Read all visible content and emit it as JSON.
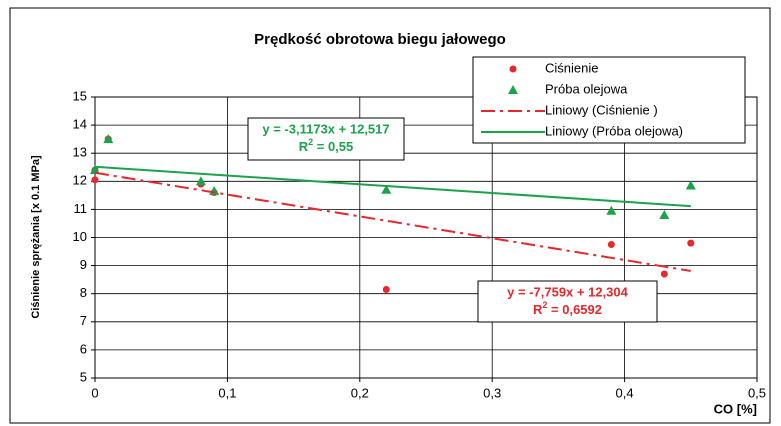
{
  "chart_data": {
    "type": "scatter",
    "title": "Prędkość obrotowa biegu jałowego",
    "xlabel": "CO [%]",
    "ylabel": "Ciśnienie sprężania [x 0.1 MPa]",
    "xlim": [
      0,
      0.5
    ],
    "xticks": [
      0,
      {
        "value": 0.1,
        "label": "0,1"
      },
      {
        "value": 0.2,
        "label": "0,2"
      },
      {
        "value": 0.3,
        "label": "0,3"
      },
      {
        "value": 0.4,
        "label": "0,4"
      },
      {
        "value": 0.5,
        "label": "0,5"
      }
    ],
    "ylim": [
      5,
      15
    ],
    "yticks": [
      5,
      6,
      7,
      8,
      9,
      10,
      11,
      12,
      13,
      14,
      15
    ],
    "grid": true,
    "legend": "top-right",
    "series": [
      {
        "name": "Ciśnienie",
        "color": "#e8262b",
        "marker": "circle",
        "x": [
          0,
          0,
          0.01,
          0.08,
          0.09,
          0.22,
          0.39,
          0.43,
          0.45
        ],
        "values": [
          12.05,
          12.4,
          13.5,
          11.9,
          11.6,
          8.15,
          9.75,
          8.7,
          9.8
        ]
      },
      {
        "name": "Próba olejowa",
        "color": "#1aa34a",
        "marker": "triangle",
        "x": [
          0,
          0.01,
          0.08,
          0.09,
          0.22,
          0.39,
          0.43,
          0.45
        ],
        "values": [
          12.4,
          13.5,
          12.0,
          11.65,
          11.7,
          10.95,
          10.8,
          11.85
        ]
      },
      {
        "name": "Liniowy (Ciśnienie )",
        "color": "#e8262b",
        "marker": "dashdot",
        "x": [
          0,
          0.45
        ],
        "values": [
          12.304,
          8.81
        ]
      },
      {
        "name": "Liniowy (Próba olejowa)",
        "color": "#1aa34a",
        "marker": "line",
        "x": [
          0,
          0.45
        ],
        "values": [
          12.517,
          11.116
        ]
      }
    ],
    "annotations": [
      {
        "equation": "y = -3,1173x + 12,517",
        "r": "R",
        "sup": "2",
        "rest": " = 0,55",
        "color": "#1aa34a"
      },
      {
        "equation": "y = -7,759x + 12,304",
        "r": "R",
        "sup": "2",
        "rest": " = 0,6592",
        "color": "#e8262b"
      }
    ]
  }
}
